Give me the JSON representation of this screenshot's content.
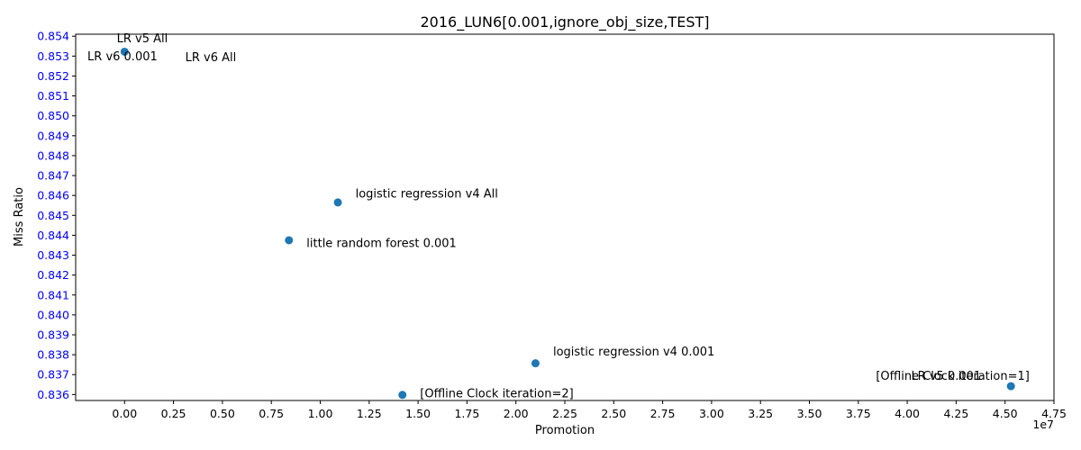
{
  "chart_data": {
    "type": "scatter",
    "title": "2016_LUN6[0.001,ignore_obj_size,TEST]",
    "xlabel": "Promotion",
    "ylabel": "Miss Ratio",
    "x_offset_label": "1e7",
    "xlim": [
      -2500000,
      47500000
    ],
    "ylim": [
      0.8357,
      0.8541
    ],
    "x_ticks": [
      0,
      2500000,
      5000000,
      7500000,
      10000000,
      12500000,
      15000000,
      17500000,
      20000000,
      22500000,
      25000000,
      27500000,
      30000000,
      32500000,
      35000000,
      37500000,
      40000000,
      42500000,
      45000000,
      47500000
    ],
    "x_tick_labels": [
      "0.00",
      "0.25",
      "0.50",
      "0.75",
      "1.00",
      "1.25",
      "1.50",
      "1.75",
      "2.00",
      "2.25",
      "2.50",
      "2.75",
      "3.00",
      "3.25",
      "3.50",
      "3.75",
      "4.00",
      "4.25",
      "4.50",
      "4.75"
    ],
    "y_ticks": [
      0.836,
      0.837,
      0.838,
      0.839,
      0.84,
      0.841,
      0.842,
      0.843,
      0.844,
      0.845,
      0.846,
      0.847,
      0.848,
      0.849,
      0.85,
      0.851,
      0.852,
      0.853,
      0.854
    ],
    "y_tick_labels": [
      "0.836",
      "0.837",
      "0.838",
      "0.839",
      "0.840",
      "0.841",
      "0.842",
      "0.843",
      "0.844",
      "0.845",
      "0.846",
      "0.847",
      "0.848",
      "0.849",
      "0.850",
      "0.851",
      "0.852",
      "0.853",
      "0.854"
    ],
    "grid": false,
    "marker_color": "#1f77b4",
    "y_tick_color": "#0000ff",
    "points": [
      {
        "x": 0,
        "y": 0.85322
      },
      {
        "x": 10900000,
        "y": 0.84565
      },
      {
        "x": 8400000,
        "y": 0.84375
      },
      {
        "x": 21000000,
        "y": 0.83757
      },
      {
        "x": 14200000,
        "y": 0.83598
      },
      {
        "x": 45300000,
        "y": 0.83642
      }
    ],
    "annotations": [
      {
        "text": "LR v5 All",
        "x": -400000,
        "y": 0.8537,
        "anchor": "start"
      },
      {
        "text": "LR v6 0.001",
        "x": -1900000,
        "y": 0.8528,
        "anchor": "start"
      },
      {
        "text": "LR v6 All",
        "x": 3100000,
        "y": 0.85275,
        "anchor": "start"
      },
      {
        "text": "logistic regression v4 All",
        "x": 11800000,
        "y": 0.8459,
        "anchor": "start"
      },
      {
        "text": "little random forest 0.001",
        "x": 9300000,
        "y": 0.8434,
        "anchor": "start"
      },
      {
        "text": "logistic regression v4 0.001",
        "x": 21900000,
        "y": 0.83795,
        "anchor": "start"
      },
      {
        "text": "[Offline Clock iteration=2]",
        "x": 15100000,
        "y": 0.83585,
        "anchor": "start"
      },
      {
        "text": "[Offline Clock iteration=1]",
        "x": 38400000,
        "y": 0.83675,
        "anchor": "start"
      },
      {
        "text": "LR v5 0.001",
        "x": 40200000,
        "y": 0.83675,
        "anchor": "start"
      }
    ]
  }
}
